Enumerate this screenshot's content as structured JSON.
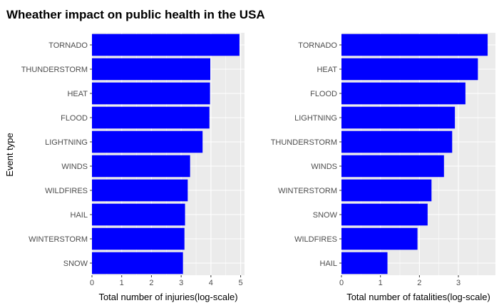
{
  "chart": {
    "title": "Wheather impact on public health in the USA",
    "y_axis_label": "Event type"
  },
  "chart_data": [
    {
      "type": "bar",
      "orientation": "horizontal",
      "title": "",
      "xlabel": "Total number of injuries(log-scale)",
      "ylabel": "Event type",
      "categories": [
        "TORNADO",
        "THUNDERSTORM",
        "HEAT",
        "FLOOD",
        "LIGHTNING",
        "WINDS",
        "WILDFIRES",
        "HAIL",
        "WINTERSTORM",
        "SNOW"
      ],
      "values": [
        4.96,
        3.98,
        3.97,
        3.95,
        3.72,
        3.3,
        3.22,
        3.13,
        3.11,
        3.06
      ],
      "xlim": [
        0,
        5.13
      ],
      "xticks": [
        0,
        1,
        2,
        3,
        4,
        5
      ],
      "bar_color": "#0000ff",
      "grid": true
    },
    {
      "type": "bar",
      "orientation": "horizontal",
      "title": "",
      "xlabel": "Total number of fatalities(log-scale)",
      "ylabel": "",
      "categories": [
        "TORNADO",
        "HEAT",
        "FLOOD",
        "LIGHTNING",
        "THUNDERSTORM",
        "WINDS",
        "WINTERSTORM",
        "SNOW",
        "WILDFIRES",
        "HAIL"
      ],
      "values": [
        3.75,
        3.5,
        3.18,
        2.91,
        2.84,
        2.63,
        2.31,
        2.21,
        1.95,
        1.18
      ],
      "xlim": [
        0,
        3.95
      ],
      "xticks": [
        0,
        1,
        2,
        3
      ],
      "bar_color": "#0000ff",
      "grid": true
    }
  ]
}
